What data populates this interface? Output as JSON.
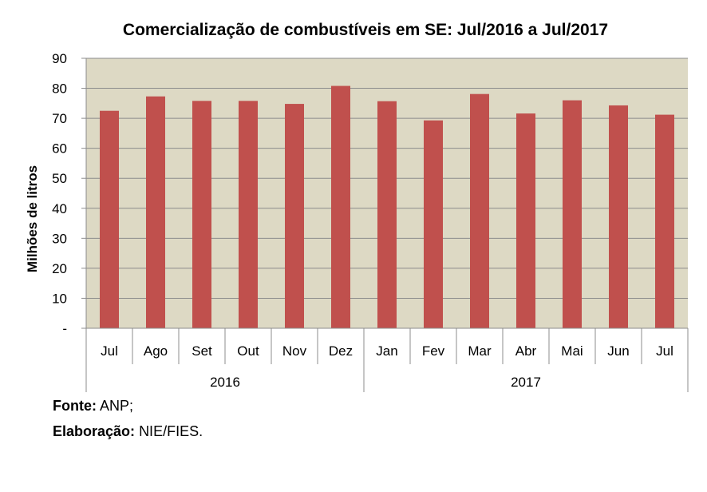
{
  "chart_data": {
    "type": "bar",
    "title": "Comercialização de combustíveis em SE: Jul/2016 a Jul/2017",
    "ylabel": "Milhões de litros",
    "xlabel": "",
    "ylim": [
      0,
      90
    ],
    "yticks": [
      0,
      10,
      20,
      30,
      40,
      50,
      60,
      70,
      80,
      90
    ],
    "yticklabels": [
      "-",
      "10",
      "20",
      "30",
      "40",
      "50",
      "60",
      "70",
      "80",
      "90"
    ],
    "categories": [
      "Jul",
      "Ago",
      "Set",
      "Out",
      "Nov",
      "Dez",
      "Jan",
      "Fev",
      "Mar",
      "Abr",
      "Mai",
      "Jun",
      "Jul"
    ],
    "groups": [
      {
        "label": "2016",
        "count": 6
      },
      {
        "label": "2017",
        "count": 7
      }
    ],
    "values": [
      72.5,
      77.3,
      75.8,
      75.8,
      74.8,
      80.8,
      75.7,
      69.3,
      78.1,
      71.6,
      76.0,
      74.3,
      71.2
    ],
    "grid": true,
    "legend": "none",
    "colors": {
      "bar": "#c0504d",
      "plot_bg": "#ddd9c4",
      "grid": "#8c8c8c",
      "axis": "#8c8c8c"
    }
  },
  "footer": {
    "source_label": "Fonte:",
    "source_value": "ANP;",
    "credit_label": "Elaboração:",
    "credit_value": "NIE/FIES."
  }
}
